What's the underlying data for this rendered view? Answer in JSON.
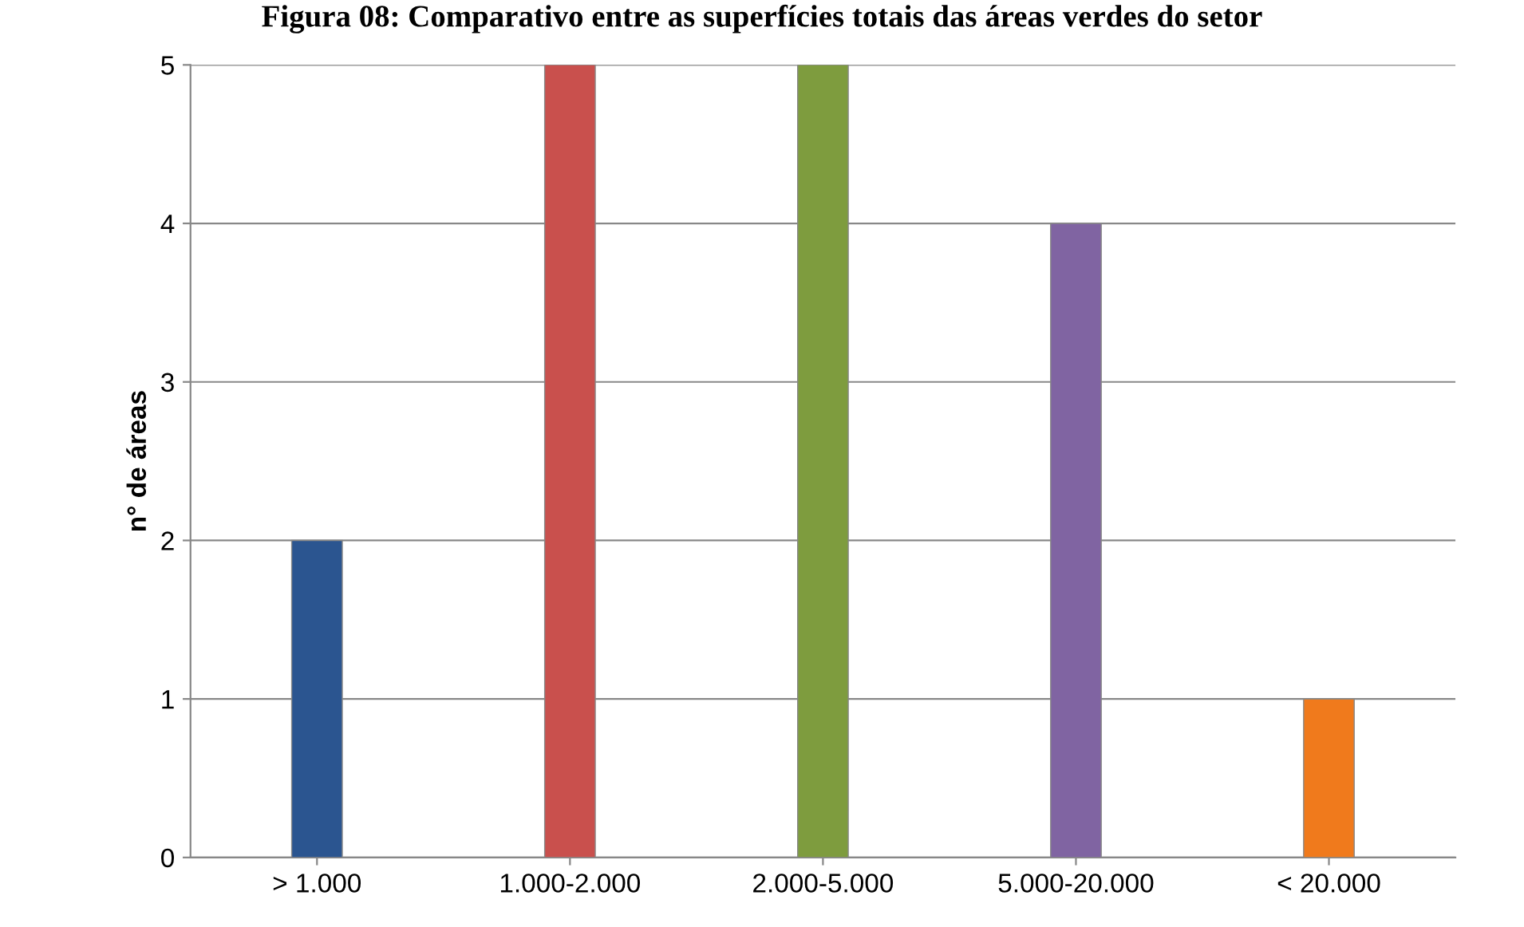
{
  "chart_data": {
    "type": "bar",
    "title": "Figura 08: Comparativo entre as superfícies totais das áreas verdes do setor",
    "ylabel": "n° de áreas",
    "categories": [
      "> 1.000",
      "1.000-2.000",
      "2.000-5.000",
      "5.000-20.000",
      "< 20.000"
    ],
    "values": [
      2,
      5,
      5,
      4,
      1
    ],
    "colors": [
      "#2b5590",
      "#c9504d",
      "#7e9c3e",
      "#8064a2",
      "#f07a1c"
    ],
    "ylim": [
      0,
      5
    ],
    "yticks": [
      0,
      1,
      2,
      3,
      4,
      5
    ],
    "grid": "y",
    "legend": false
  }
}
